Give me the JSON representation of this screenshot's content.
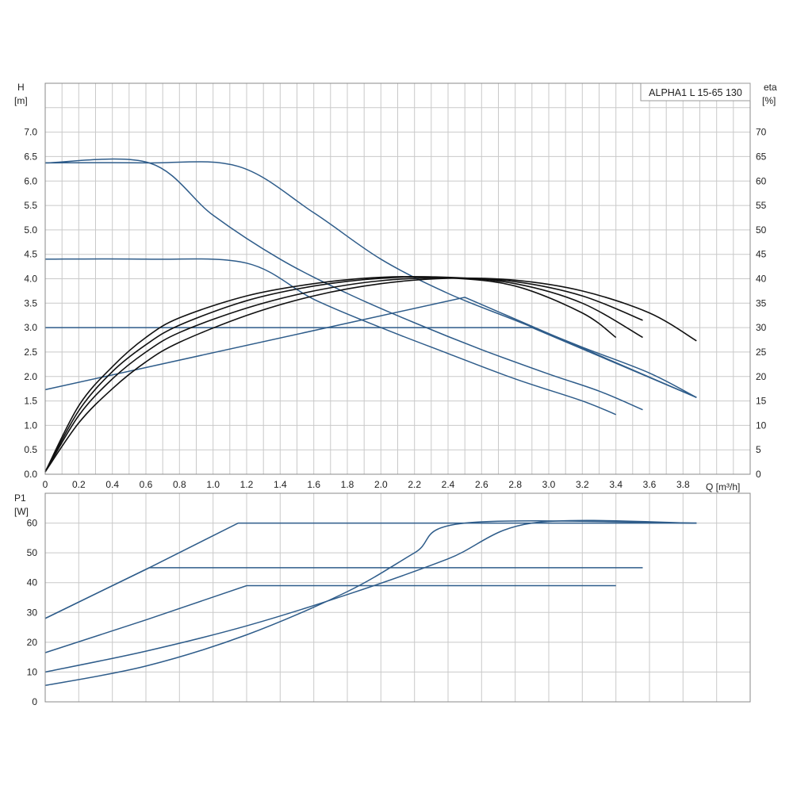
{
  "chart_data": [
    {
      "type": "line",
      "model_label": "ALPHA1 L 15-65 130",
      "x_axis": {
        "label": "Q [m³/h]",
        "range": [
          0,
          4.2
        ],
        "ticks": [
          "0",
          "0.2",
          "0.4",
          "0.6",
          "0.8",
          "1.0",
          "1.2",
          "1.4",
          "1.6",
          "1.8",
          "2.0",
          "2.2",
          "2.4",
          "2.6",
          "2.8",
          "3.0",
          "3.2",
          "3.4",
          "3.6",
          "3.8"
        ],
        "tick_values": [
          0,
          0.2,
          0.4,
          0.6,
          0.8,
          1.0,
          1.2,
          1.4,
          1.6,
          1.8,
          2.0,
          2.2,
          2.4,
          2.6,
          2.8,
          3.0,
          3.2,
          3.4,
          3.6,
          3.8
        ]
      },
      "y_left": {
        "label_line1": "H",
        "label_line2": "[m]",
        "range": [
          0,
          8
        ],
        "ticks": [
          "0.0",
          "0.5",
          "1.0",
          "1.5",
          "2.0",
          "2.5",
          "3.0",
          "3.5",
          "4.0",
          "4.5",
          "5.0",
          "5.5",
          "6.0",
          "6.5",
          "7.0"
        ],
        "tick_values": [
          0,
          0.5,
          1.0,
          1.5,
          2.0,
          2.5,
          3.0,
          3.5,
          4.0,
          4.5,
          5.0,
          5.5,
          6.0,
          6.5,
          7.0
        ]
      },
      "y_right": {
        "label_line1": "eta",
        "label_line2": "[%]",
        "range": [
          0,
          80
        ],
        "ticks": [
          "0",
          "5",
          "10",
          "15",
          "20",
          "25",
          "30",
          "35",
          "40",
          "45",
          "50",
          "55",
          "60",
          "65",
          "70"
        ],
        "tick_values": [
          0,
          5,
          10,
          15,
          20,
          25,
          30,
          35,
          40,
          45,
          50,
          55,
          60,
          65,
          70
        ]
      },
      "grid": true,
      "head_curves": [
        {
          "points": [
            [
              0,
              6.37
            ],
            [
              0.6,
              6.37
            ],
            [
              1.15,
              6.3
            ],
            [
              1.6,
              5.35
            ],
            [
              2.0,
              4.4
            ],
            [
              2.4,
              3.7
            ],
            [
              2.8,
              3.15
            ],
            [
              3.2,
              2.6
            ],
            [
              3.6,
              2.07
            ],
            [
              3.88,
              1.57
            ]
          ]
        },
        {
          "points": [
            [
              0,
              6.37
            ],
            [
              0.62,
              6.37
            ],
            [
              1.0,
              5.3
            ],
            [
              1.4,
              4.4
            ],
            [
              1.8,
              3.7
            ],
            [
              2.2,
              3.1
            ],
            [
              2.6,
              2.55
            ],
            [
              3.0,
              2.05
            ],
            [
              3.3,
              1.7
            ],
            [
              3.56,
              1.32
            ]
          ]
        },
        {
          "points": [
            [
              0,
              4.4
            ],
            [
              0.6,
              4.4
            ],
            [
              1.2,
              4.32
            ],
            [
              1.6,
              3.58
            ],
            [
              2.0,
              3.0
            ],
            [
              2.4,
              2.47
            ],
            [
              2.8,
              1.95
            ],
            [
              3.2,
              1.5
            ],
            [
              3.4,
              1.22
            ]
          ]
        },
        {
          "points": [
            [
              0,
              3.0
            ],
            [
              2.9,
              3.0
            ],
            [
              3.88,
              1.57
            ]
          ]
        },
        {
          "points": [
            [
              0,
              1.73
            ],
            [
              2.5,
              3.62
            ],
            [
              3.88,
              1.57
            ]
          ]
        }
      ],
      "efficiency_curves": [
        {
          "points": [
            [
              0,
              0.5
            ],
            [
              0.2,
              14
            ],
            [
              0.4,
              22
            ],
            [
              0.6,
              28
            ],
            [
              0.8,
              32
            ],
            [
              1.2,
              36.5
            ],
            [
              1.6,
              39
            ],
            [
              2.0,
              40.3
            ],
            [
              2.4,
              40.2
            ],
            [
              2.8,
              38.5
            ],
            [
              3.2,
              33
            ],
            [
              3.4,
              28
            ]
          ]
        },
        {
          "points": [
            [
              0,
              0.5
            ],
            [
              0.2,
              13
            ],
            [
              0.4,
              21
            ],
            [
              0.6,
              26.5
            ],
            [
              0.8,
              30.5
            ],
            [
              1.2,
              35.5
            ],
            [
              1.6,
              38.5
            ],
            [
              2.0,
              40.1
            ],
            [
              2.4,
              40.3
            ],
            [
              2.8,
              39
            ],
            [
              3.2,
              35
            ],
            [
              3.56,
              28
            ]
          ]
        },
        {
          "points": [
            [
              0,
              0.5
            ],
            [
              0.2,
              12
            ],
            [
              0.4,
              19.5
            ],
            [
              0.6,
              25
            ],
            [
              0.8,
              29
            ],
            [
              1.2,
              34
            ],
            [
              1.6,
              37.5
            ],
            [
              2.0,
              39.6
            ],
            [
              2.4,
              40.2
            ],
            [
              2.8,
              39.4
            ],
            [
              3.2,
              36.5
            ],
            [
              3.56,
              31.5
            ]
          ]
        },
        {
          "points": [
            [
              0,
              0.5
            ],
            [
              0.2,
              10.5
            ],
            [
              0.4,
              17.5
            ],
            [
              0.6,
              23
            ],
            [
              0.8,
              27
            ],
            [
              1.2,
              32.5
            ],
            [
              1.6,
              36.5
            ],
            [
              2.0,
              39
            ],
            [
              2.4,
              40.1
            ],
            [
              2.8,
              39.7
            ],
            [
              3.2,
              37.5
            ],
            [
              3.6,
              33
            ],
            [
              3.88,
              27.3
            ]
          ]
        }
      ]
    },
    {
      "type": "line",
      "x_axis": {
        "range": [
          0,
          4.2
        ]
      },
      "y_axis": {
        "label_line1": "P1",
        "label_line2": "[W]",
        "range": [
          0,
          70
        ],
        "ticks": [
          "0",
          "10",
          "20",
          "30",
          "40",
          "50",
          "60"
        ],
        "tick_values": [
          0,
          10,
          20,
          30,
          40,
          50,
          60
        ]
      },
      "grid": true,
      "power_curves": [
        {
          "points": [
            [
              0,
              28
            ],
            [
              0.62,
              45
            ],
            [
              1.15,
              60
            ],
            [
              3.88,
              60
            ]
          ]
        },
        {
          "points": [
            [
              0,
              28
            ],
            [
              0.62,
              45
            ],
            [
              3.56,
              45
            ]
          ]
        },
        {
          "points": [
            [
              0,
              16.5
            ],
            [
              0.6,
              27.5
            ],
            [
              1.2,
              39
            ],
            [
              3.4,
              39
            ]
          ]
        },
        {
          "points": [
            [
              0,
              10
            ],
            [
              0.6,
              17
            ],
            [
              1.2,
              25.5
            ],
            [
              1.8,
              36
            ],
            [
              2.4,
              48
            ],
            [
              2.9,
              60
            ],
            [
              3.88,
              60
            ]
          ]
        },
        {
          "points": [
            [
              0,
              5.5
            ],
            [
              0.6,
              12
            ],
            [
              1.2,
              22.5
            ],
            [
              1.8,
              37
            ],
            [
              2.2,
              50
            ],
            [
              2.5,
              60
            ],
            [
              3.88,
              60
            ]
          ]
        }
      ]
    }
  ]
}
